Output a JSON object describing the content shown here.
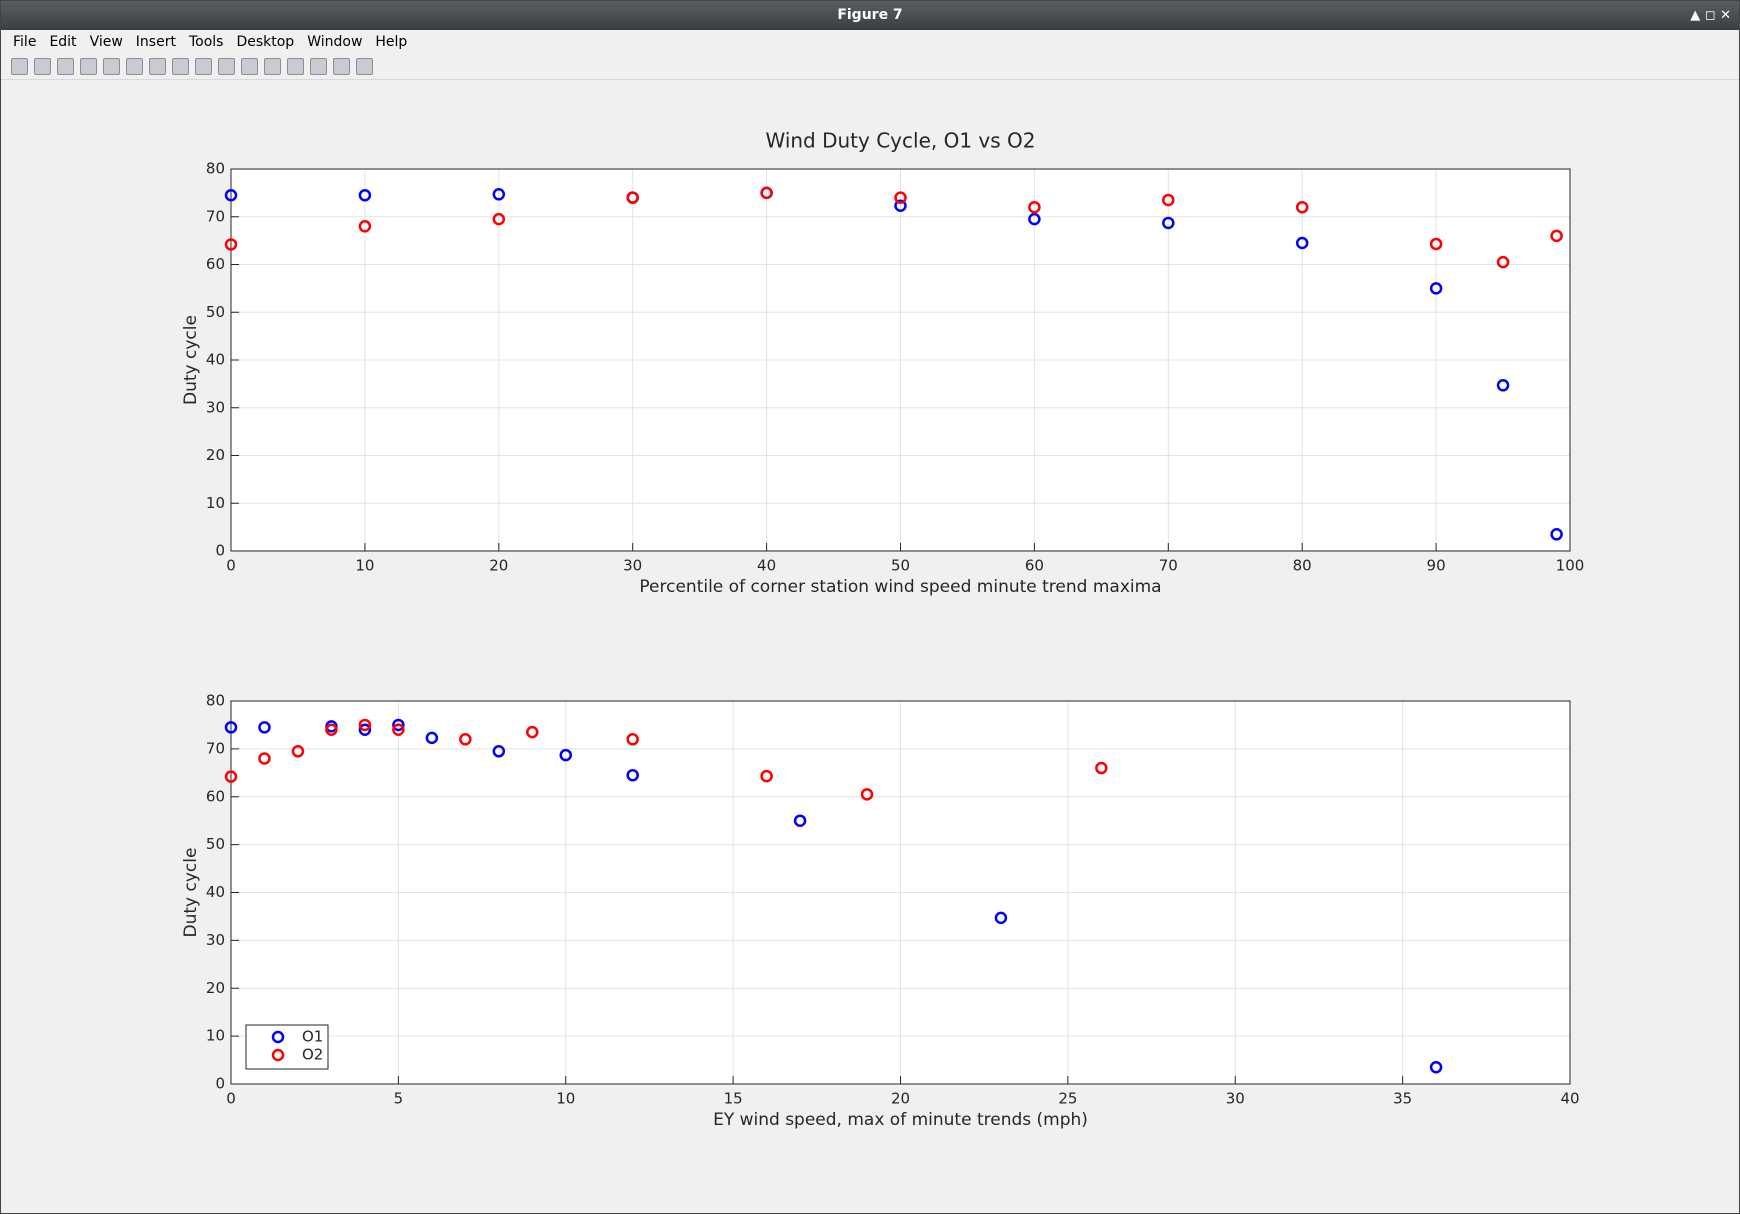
{
  "window": {
    "title": "Figure 7",
    "menus": [
      "File",
      "Edit",
      "View",
      "Insert",
      "Tools",
      "Desktop",
      "Window",
      "Help"
    ]
  },
  "chart_data": [
    {
      "type": "scatter",
      "title": "Wind Duty Cycle, O1 vs O2",
      "xlabel": "Percentile of corner station wind speed minute trend maxima",
      "ylabel": "Duty cycle",
      "xlim": [
        0,
        100
      ],
      "xticks": [
        0,
        10,
        20,
        30,
        40,
        50,
        60,
        70,
        80,
        90,
        100
      ],
      "ylim": [
        0,
        80
      ],
      "yticks": [
        0,
        10,
        20,
        30,
        40,
        50,
        60,
        70,
        80
      ],
      "grid": true,
      "series": [
        {
          "color": "#0000ff",
          "x": [
            0,
            10,
            20,
            30,
            40,
            50,
            60,
            70,
            80,
            90,
            95,
            99
          ],
          "values": [
            74.5,
            74.5,
            74.7,
            74,
            75,
            72.3,
            69.5,
            68.7,
            64.5,
            55,
            34.7,
            3.5
          ]
        },
        {
          "color": "#ff0000",
          "x": [
            0,
            10,
            20,
            30,
            40,
            50,
            60,
            70,
            80,
            90,
            95,
            99
          ],
          "values": [
            64.2,
            68,
            69.5,
            74,
            75,
            74,
            72,
            73.5,
            72,
            64.3,
            60.5,
            66
          ]
        }
      ]
    },
    {
      "type": "scatter",
      "xlabel": "EY wind speed, max of minute trends (mph)",
      "ylabel": "Duty cycle",
      "xlim": [
        0,
        40
      ],
      "xticks": [
        0,
        5,
        10,
        15,
        20,
        25,
        30,
        35,
        40
      ],
      "ylim": [
        0,
        80
      ],
      "yticks": [
        0,
        10,
        20,
        30,
        40,
        50,
        60,
        70,
        80
      ],
      "grid": true,
      "legend": "southwest",
      "series": [
        {
          "name": "O1",
          "color": "#0000ff",
          "x": [
            0,
            1,
            3,
            4,
            5,
            6,
            8,
            10,
            12,
            17,
            23,
            36
          ],
          "values": [
            74.5,
            74.5,
            74.7,
            74,
            75,
            72.3,
            69.5,
            68.7,
            64.5,
            55,
            34.7,
            3.5
          ]
        },
        {
          "name": "O2",
          "color": "#ff0000",
          "x": [
            0,
            1,
            2,
            3,
            4,
            5,
            7,
            9,
            12,
            16,
            19,
            26
          ],
          "values": [
            64.2,
            68,
            69.5,
            74,
            75,
            74,
            72,
            73.5,
            72,
            64.3,
            60.5,
            66
          ]
        }
      ]
    }
  ]
}
